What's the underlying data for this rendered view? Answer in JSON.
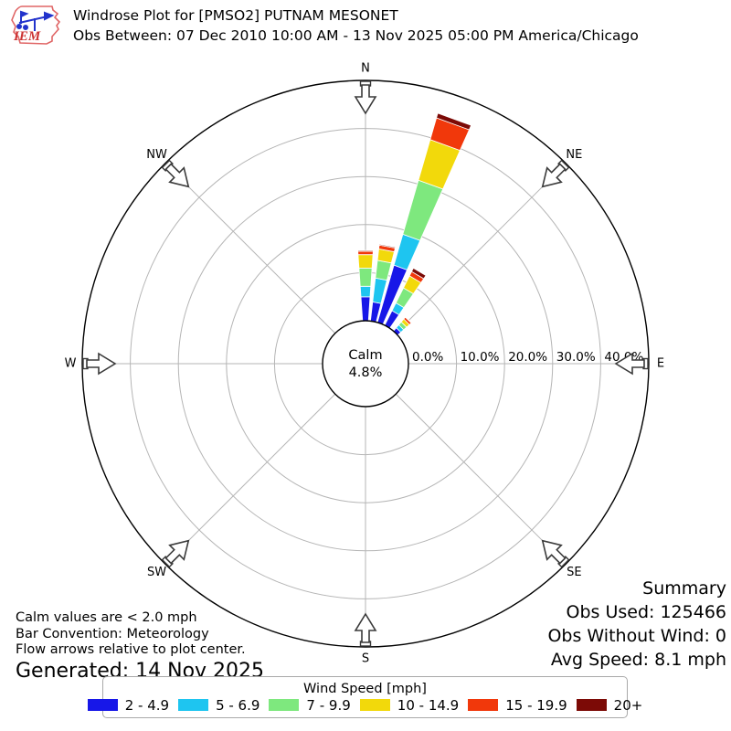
{
  "header": {
    "logo_text": "IEM",
    "title": "Windrose Plot for [PMSO2] PUTNAM MESONET",
    "subtitle": "Obs Between: 07 Dec 2010 10:00 AM - 13 Nov 2025 05:00 PM America/Chicago"
  },
  "summary": {
    "heading": "Summary",
    "obs_used": "Obs Used: 125466",
    "obs_without_wind": "Obs Without Wind: 0",
    "avg_speed": "Avg Speed: 8.1 mph"
  },
  "footnotes": {
    "calm_note": "Calm values are < 2.0 mph",
    "convention_note": "Bar Convention: Meteorology",
    "arrows_note": "Flow arrows relative to plot center.",
    "generated": "Generated: 14 Nov 2025"
  },
  "legend": {
    "title": "Wind Speed [mph]",
    "items": [
      {
        "label": "2 - 4.9",
        "color": "#1717e8"
      },
      {
        "label": "5 - 6.9",
        "color": "#1ec5f0"
      },
      {
        "label": "7 - 9.9",
        "color": "#7ee87e"
      },
      {
        "label": "10 - 14.9",
        "color": "#f2d90b"
      },
      {
        "label": "15 - 19.9",
        "color": "#f1380b"
      },
      {
        "label": "20+",
        "color": "#7c0a06"
      }
    ]
  },
  "chart_data": {
    "type": "windrose",
    "units": "mph",
    "speed_bins": [
      {
        "label": "2 - 4.9",
        "color": "#1717e8"
      },
      {
        "label": "5 - 6.9",
        "color": "#1ec5f0"
      },
      {
        "label": "7 - 9.9",
        "color": "#7ee87e"
      },
      {
        "label": "10 - 14.9",
        "color": "#f2d90b"
      },
      {
        "label": "15 - 19.9",
        "color": "#f1380b"
      },
      {
        "label": "20+",
        "color": "#7c0a06"
      }
    ],
    "directions": [
      {
        "angle_deg": 0,
        "cumulative_pct": [
          5.0,
          7.2,
          11.0,
          13.8,
          14.5,
          14.7
        ]
      },
      {
        "angle_deg": 10.5,
        "cumulative_pct": [
          4.0,
          9.0,
          12.7,
          15.1,
          15.9,
          16.1
        ]
      },
      {
        "angle_deg": 20,
        "cumulative_pct": [
          12.4,
          19.1,
          30.8,
          39.6,
          44.3,
          45.3
        ]
      },
      {
        "angle_deg": 30.5,
        "cumulative_pct": [
          3.4,
          5.2,
          8.7,
          11.5,
          12.5,
          13.3
        ]
      },
      {
        "angle_deg": 44.5,
        "cumulative_pct": [
          0.9,
          1.7,
          2.5,
          3.3,
          3.8,
          3.9
        ]
      }
    ],
    "ring_ticks_pct": [
      0,
      10,
      20,
      30,
      40
    ],
    "ring_tick_labels": [
      "0.0%",
      "10.0%",
      "20.0%",
      "30.0%",
      "40.0%"
    ],
    "rmax_pct": 50,
    "calm": {
      "label": "Calm",
      "value": "4.8%"
    },
    "compass": [
      {
        "label": "N",
        "angle_deg": 0
      },
      {
        "label": "NE",
        "angle_deg": 45
      },
      {
        "label": "E",
        "angle_deg": 90
      },
      {
        "label": "SE",
        "angle_deg": 135
      },
      {
        "label": "S",
        "angle_deg": 180
      },
      {
        "label": "SW",
        "angle_deg": 225
      },
      {
        "label": "W",
        "angle_deg": 270
      },
      {
        "label": "NW",
        "angle_deg": 315
      }
    ]
  }
}
